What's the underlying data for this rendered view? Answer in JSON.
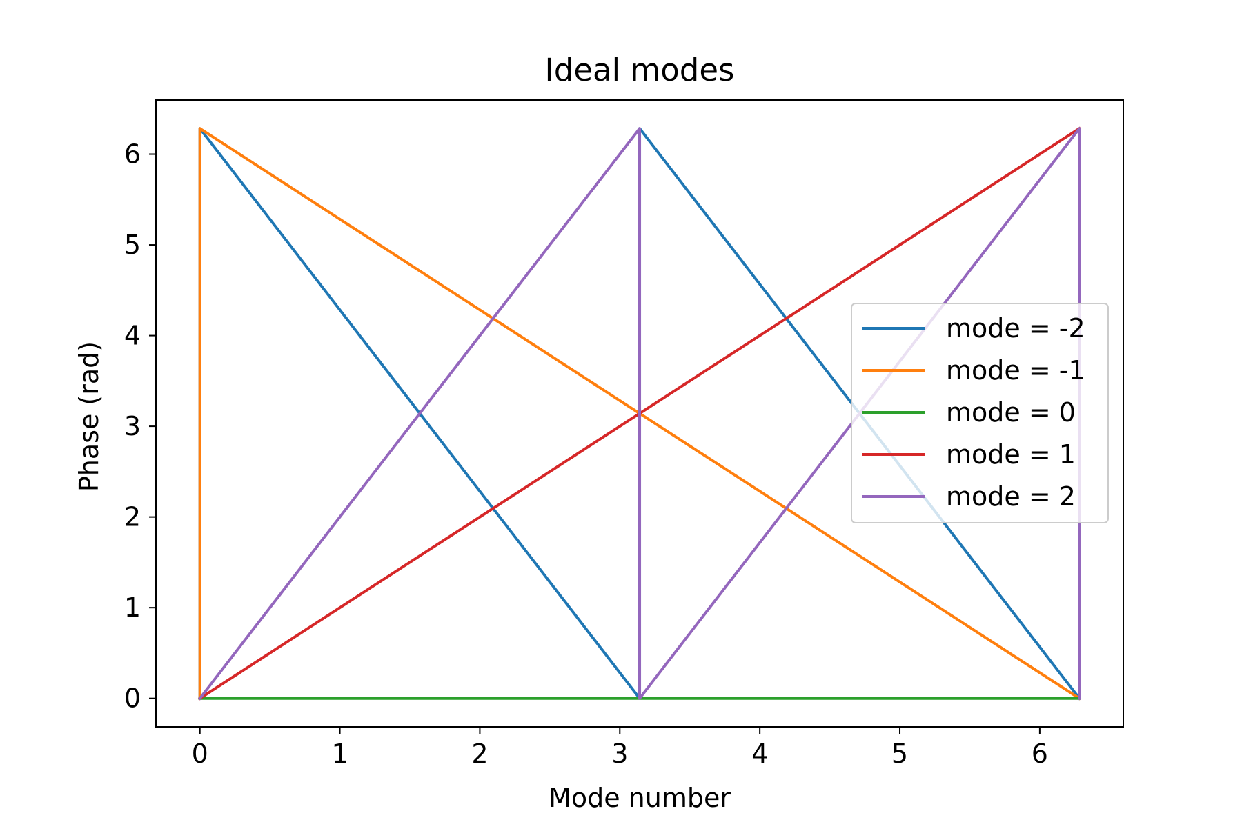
{
  "chart_data": {
    "type": "line",
    "title": "Ideal modes",
    "xlabel": "Mode number",
    "ylabel": "Phase (rad)",
    "xlim": [
      -0.314,
      6.597
    ],
    "ylim": [
      -0.314,
      6.597
    ],
    "xticks": [
      0,
      1,
      2,
      3,
      4,
      5,
      6
    ],
    "yticks": [
      0,
      1,
      2,
      3,
      4,
      5,
      6
    ],
    "grid": false,
    "legend_position": "center-right",
    "series": [
      {
        "name": "mode = -2",
        "color": "#1f77b4",
        "x": [
          0.0,
          0.0,
          3.1416,
          3.1416,
          6.2832
        ],
        "y": [
          0.0,
          6.2832,
          0.0,
          6.2832,
          0.0
        ]
      },
      {
        "name": "mode = -1",
        "color": "#ff7f0e",
        "x": [
          0.0,
          0.0,
          6.2832
        ],
        "y": [
          0.0,
          6.2832,
          0.0
        ]
      },
      {
        "name": "mode = 0",
        "color": "#2ca02c",
        "x": [
          0.0,
          6.2832
        ],
        "y": [
          0.0,
          0.0
        ]
      },
      {
        "name": "mode = 1",
        "color": "#d62728",
        "x": [
          0.0,
          6.2832
        ],
        "y": [
          0.0,
          6.2832
        ]
      },
      {
        "name": "mode = 2",
        "color": "#9467bd",
        "x": [
          0.0,
          3.1416,
          3.1416,
          6.2832,
          6.2832
        ],
        "y": [
          0.0,
          6.2832,
          0.0,
          6.2832,
          0.0
        ]
      }
    ]
  }
}
